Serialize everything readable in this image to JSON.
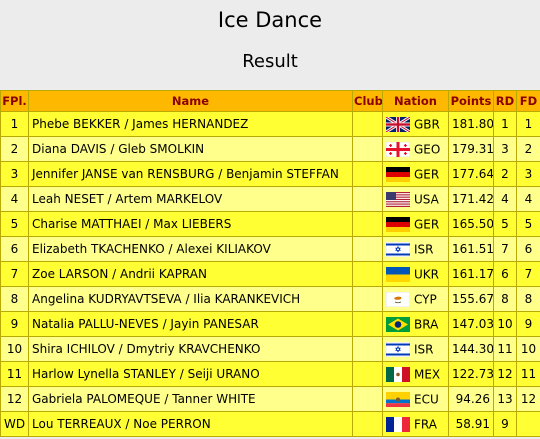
{
  "page": {
    "title": "Ice Dance",
    "subtitle": "Result"
  },
  "table": {
    "headers": {
      "fpl": "FPl.",
      "name": "Name",
      "club": "Club",
      "nation": "Nation",
      "points": "Points",
      "rd": "RD",
      "fd": "FD"
    },
    "rows": [
      {
        "fpl": "1",
        "name": "Phebe BEKKER / James HERNANDEZ",
        "club": "",
        "flag": "gbr-flag-icon",
        "nation": "GBR",
        "points": "181.80",
        "rd": "1",
        "fd": "1"
      },
      {
        "fpl": "2",
        "name": "Diana DAVIS / Gleb SMOLKIN",
        "club": "",
        "flag": "geo-flag-icon",
        "nation": "GEO",
        "points": "179.31",
        "rd": "3",
        "fd": "2"
      },
      {
        "fpl": "3",
        "name": "Jennifer JANSE van RENSBURG / Benjamin STEFFAN",
        "club": "",
        "flag": "ger-flag-icon",
        "nation": "GER",
        "points": "177.64",
        "rd": "2",
        "fd": "3"
      },
      {
        "fpl": "4",
        "name": "Leah NESET / Artem MARKELOV",
        "club": "",
        "flag": "usa-flag-icon",
        "nation": "USA",
        "points": "171.42",
        "rd": "4",
        "fd": "4"
      },
      {
        "fpl": "5",
        "name": "Charise MATTHAEI / Max LIEBERS",
        "club": "",
        "flag": "ger-flag-icon",
        "nation": "GER",
        "points": "165.50",
        "rd": "5",
        "fd": "5"
      },
      {
        "fpl": "6",
        "name": "Elizabeth TKACHENKO / Alexei KILIAKOV",
        "club": "",
        "flag": "isr-flag-icon",
        "nation": "ISR",
        "points": "161.51",
        "rd": "7",
        "fd": "6"
      },
      {
        "fpl": "7",
        "name": "Zoe LARSON / Andrii KAPRAN",
        "club": "",
        "flag": "ukr-flag-icon",
        "nation": "UKR",
        "points": "161.17",
        "rd": "6",
        "fd": "7"
      },
      {
        "fpl": "8",
        "name": "Angelina KUDRYAVTSEVA / Ilia KARANKEVICH",
        "club": "",
        "flag": "cyp-flag-icon",
        "nation": "CYP",
        "points": "155.67",
        "rd": "8",
        "fd": "8"
      },
      {
        "fpl": "9",
        "name": "Natalia PALLU-NEVES / Jayin PANESAR",
        "club": "",
        "flag": "bra-flag-icon",
        "nation": "BRA",
        "points": "147.03",
        "rd": "10",
        "fd": "9"
      },
      {
        "fpl": "10",
        "name": "Shira ICHILOV / Dmytriy KRAVCHENKO",
        "club": "",
        "flag": "isr-flag-icon",
        "nation": "ISR",
        "points": "144.30",
        "rd": "11",
        "fd": "10"
      },
      {
        "fpl": "11",
        "name": "Harlow Lynella STANLEY / Seiji URANO",
        "club": "",
        "flag": "mex-flag-icon",
        "nation": "MEX",
        "points": "122.73",
        "rd": "12",
        "fd": "11"
      },
      {
        "fpl": "12",
        "name": "Gabriela PALOMEQUE / Tanner WHITE",
        "club": "",
        "flag": "ecu-flag-icon",
        "nation": "ECU",
        "points": "94.26",
        "rd": "13",
        "fd": "12"
      },
      {
        "fpl": "WD",
        "name": "Lou TERREAUX / Noe PERRON",
        "club": "",
        "flag": "fra-flag-icon",
        "nation": "FRA",
        "points": "58.91",
        "rd": "9",
        "fd": ""
      }
    ]
  },
  "colors": {
    "header_bg": "#ffb800",
    "header_text": "#8b0000",
    "row_odd": "#ffff33",
    "row_even": "#ffff8c"
  }
}
